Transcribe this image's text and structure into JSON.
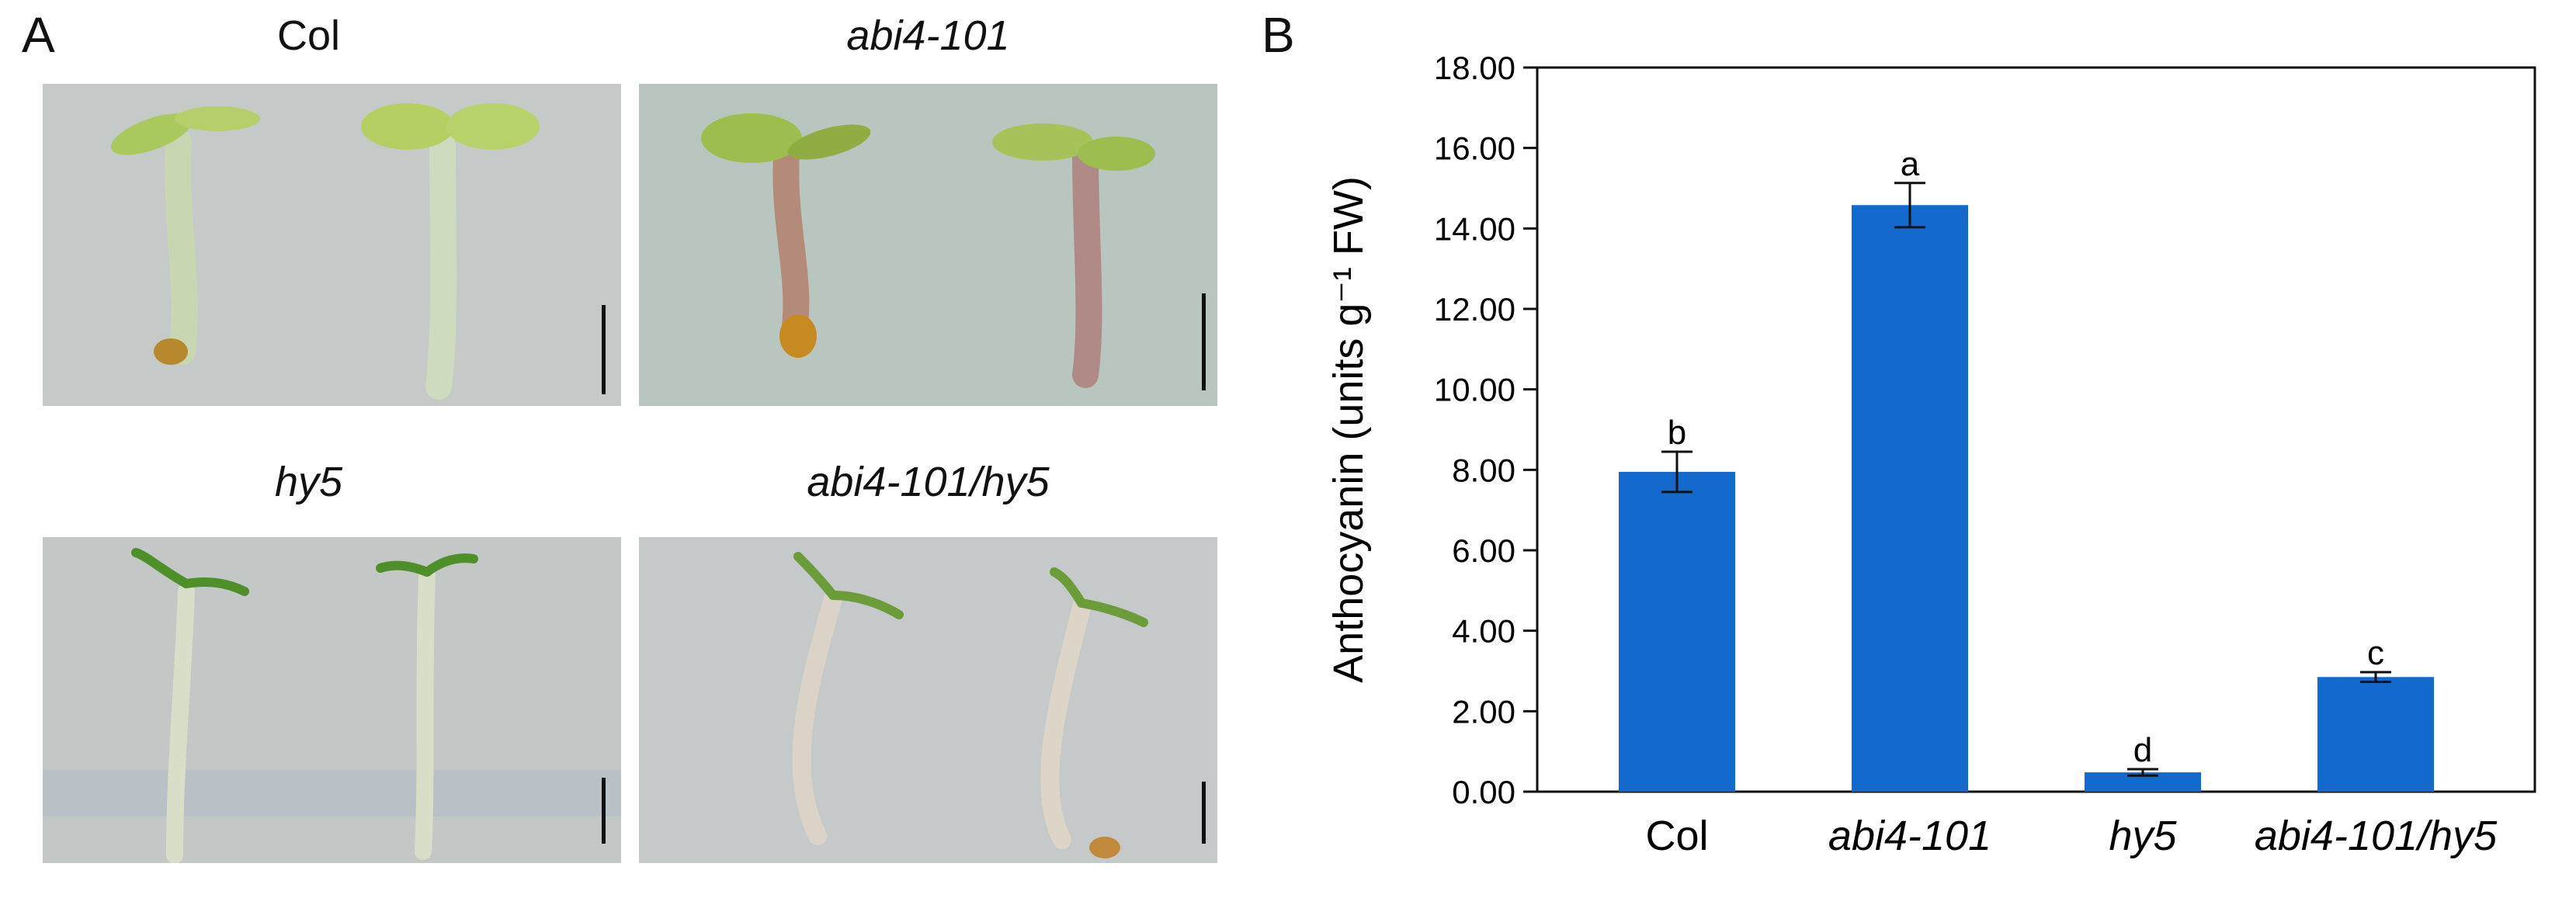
{
  "panels": {
    "a_letter": "A",
    "b_letter": "B"
  },
  "photos": [
    {
      "label": "Col",
      "italic": false,
      "stem_color": "#c8d6b2",
      "leaf_color": "#a9c95e",
      "bg": "#c5cac9"
    },
    {
      "label": "abi4-101",
      "italic": true,
      "stem_color": "#b48a7a",
      "leaf_color": "#9dbd4e",
      "bg": "#b9c6bf"
    },
    {
      "label": "hy5",
      "italic": true,
      "stem_color": "#d9dec8",
      "leaf_color": "#4e8f2a",
      "bg": "#c3c8c7"
    },
    {
      "label": "abi4-101/hy5",
      "italic": true,
      "stem_color": "#dcd3c8",
      "leaf_color": "#6c9c3a",
      "bg": "#c6c9c9"
    }
  ],
  "chart_data": {
    "type": "bar",
    "categories": [
      "Col",
      "abi4-101",
      "hy5",
      "abi4-101/hy5"
    ],
    "category_italic": [
      false,
      true,
      true,
      true
    ],
    "values": [
      7.95,
      14.58,
      0.48,
      2.85
    ],
    "errors": [
      0.5,
      0.55,
      0.08,
      0.12
    ],
    "significance": [
      "b",
      "a",
      "d",
      "c"
    ],
    "ylabel": "Anthocyanin (units g⁻¹ FW)",
    "ylim": [
      0,
      18
    ],
    "yticks": [
      "0.00",
      "2.00",
      "4.00",
      "6.00",
      "8.00",
      "10.00",
      "12.00",
      "14.00",
      "16.00",
      "18.00"
    ],
    "bar_color": "#1469cc",
    "grid": false
  }
}
